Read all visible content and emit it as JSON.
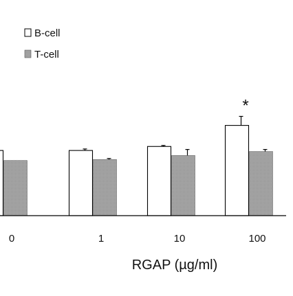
{
  "chart_data": {
    "type": "bar",
    "categories": [
      "0",
      "1",
      "10",
      "100"
    ],
    "series": [
      {
        "name": "B-cell",
        "values": [
          1.3,
          1.3,
          1.38,
          1.8
        ],
        "errors": [
          0.0,
          0.03,
          0.02,
          0.18
        ],
        "fill": "#ffffff"
      },
      {
        "name": "T-cell",
        "values": [
          1.1,
          1.12,
          1.2,
          1.28
        ],
        "errors": [
          0.0,
          0.02,
          0.12,
          0.04
        ],
        "fill": "#a8a8a8"
      }
    ],
    "ylim": [
      0,
      2.8
    ],
    "xlabel": "RGAP (µg/ml)",
    "ylabel": "",
    "annotations": [
      {
        "category": "100",
        "series": "B-cell",
        "text": "*"
      }
    ],
    "legend_position": "top-left",
    "grid": false
  }
}
